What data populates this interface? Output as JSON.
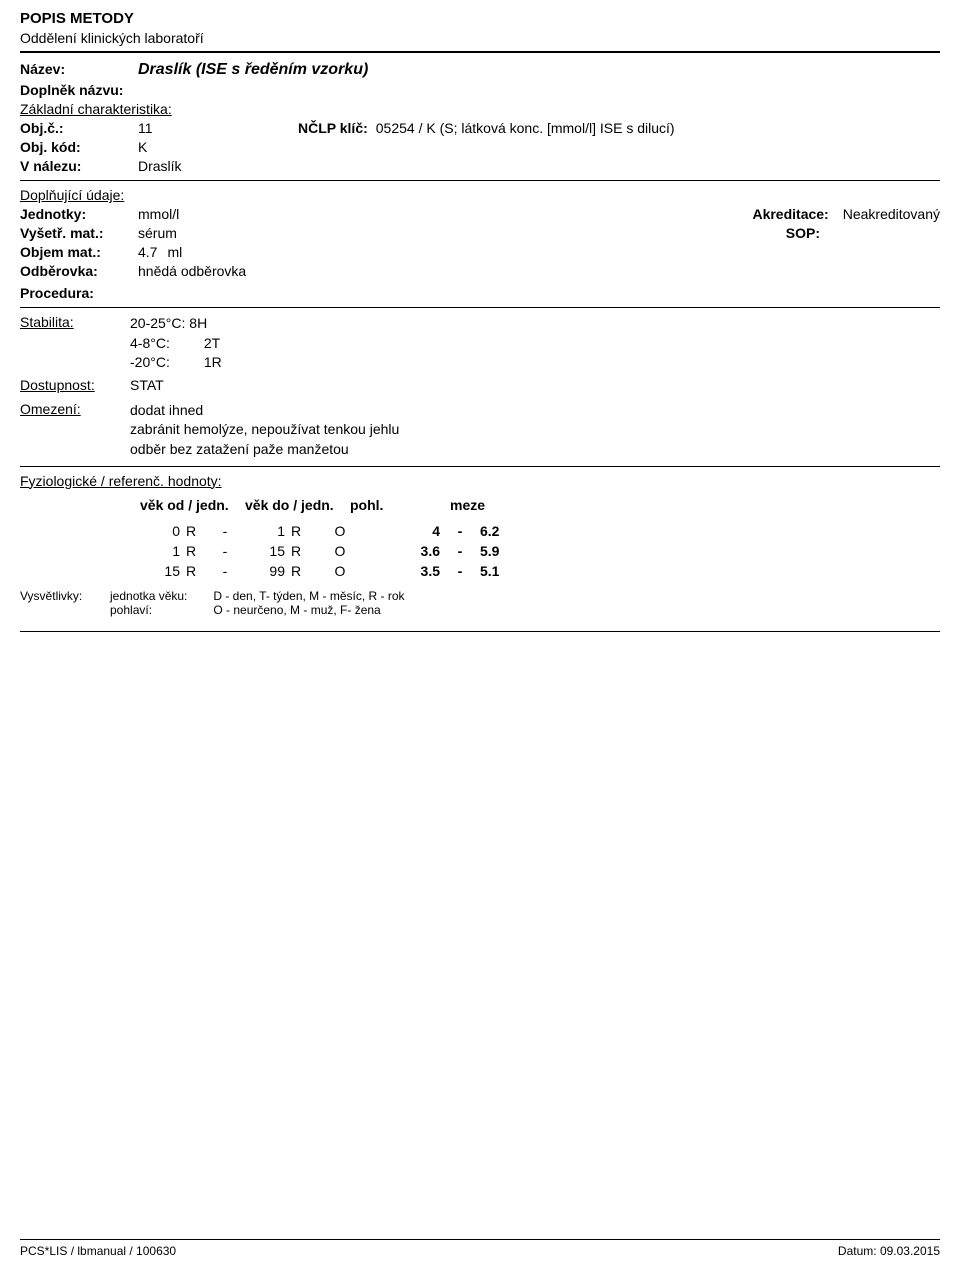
{
  "header": {
    "title": "POPIS METODY",
    "subtitle": "Oddělení klinických laboratoří"
  },
  "name_section": {
    "nazev_label": "Název:",
    "nazev_value": "Draslík (ISE s ředěním vzorku)",
    "doplnek_label": "Doplněk názvu:"
  },
  "basic": {
    "heading": "Základní charakteristika:",
    "objc_label": "Obj.č.:",
    "objc_value": "11",
    "nclp_label": "NČLP klíč:",
    "nclp_value": "05254 / K (S; látková konc. [mmol/l] ISE s dilucí)",
    "objkod_label": "Obj. kód:",
    "objkod_value": "K",
    "vnalezu_label": "V nálezu:",
    "vnalezu_value": "Draslík"
  },
  "supplementary": {
    "heading": "Doplňující údaje:",
    "jednotky_label": "Jednotky:",
    "jednotky_value": "mmol/l",
    "akreditace_label": "Akreditace:",
    "akreditace_value": "Neakreditovaný",
    "vysmat_label": "Vyšetř. mat.:",
    "vysmat_value": "sérum",
    "sop_label": "SOP:",
    "objem_label": "Objem mat.:",
    "objem_value": "4.7",
    "objem_unit": "ml",
    "odberovka_label": "Odběrovka:",
    "odberovka_value": "hnědá odběrovka",
    "procedura_label": "Procedura:"
  },
  "stability": {
    "label": "Stabilita:",
    "line1": "20-25°C: 8H",
    "line2a": "4-8°C:",
    "line2b": "2T",
    "line3a": "-20°C:",
    "line3b": "1R"
  },
  "availability": {
    "label": "Dostupnost:",
    "value": "STAT"
  },
  "restriction": {
    "label": "Omezení:",
    "line1": "dodat ihned",
    "line2": "zabránit hemolýze, nepoužívat tenkou jehlu",
    "line3": "odběr bez zatažení paže manžetou"
  },
  "reference": {
    "heading": "Fyziologické / referenč. hodnoty:",
    "th_from": "věk od / jedn.",
    "th_to": "věk do / jedn.",
    "th_sex": "pohl.",
    "th_lim": "meze",
    "rows": [
      {
        "from_v": "0",
        "from_u": "R",
        "to_v": "1",
        "to_u": "R",
        "sex": "O",
        "low": "4",
        "high": "6.2"
      },
      {
        "from_v": "1",
        "from_u": "R",
        "to_v": "15",
        "to_u": "R",
        "sex": "O",
        "low": "3.6",
        "high": "5.9"
      },
      {
        "from_v": "15",
        "from_u": "R",
        "to_v": "99",
        "to_u": "R",
        "sex": "O",
        "low": "3.5",
        "high": "5.1"
      }
    ],
    "dash": "-"
  },
  "legend": {
    "vysvetlivky_label": "Vysvětlivky:",
    "age_label": "jednotka věku:",
    "age_value": "D - den, T- týden, M - měsíc, R - rok",
    "sex_label": "pohlaví:",
    "sex_value": "O - neurčeno, M - muž, F- žena"
  },
  "footer": {
    "left": "PCS*LIS / lbmanual / 100630",
    "right_label": "Datum:",
    "right_value": "09.03.2015"
  }
}
